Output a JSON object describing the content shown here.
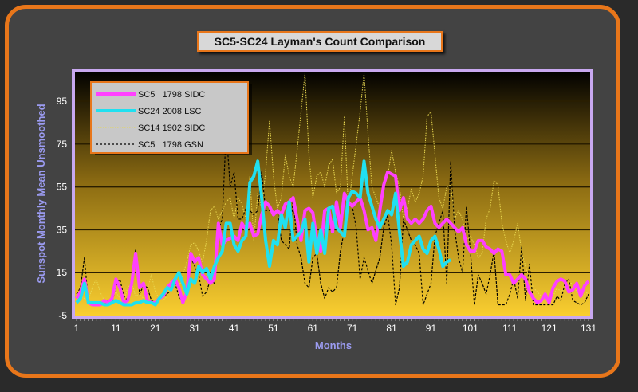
{
  "chart_data": {
    "type": "line",
    "title": "SC5-SC24 Layman's Count Comparison",
    "xlabel": "Months",
    "ylabel": "Sunspot Monthly Mean Unsmoothed",
    "xlim": [
      1,
      131
    ],
    "ylim": [
      -5,
      115
    ],
    "xticks": [
      "1",
      "11",
      "21",
      "31",
      "41",
      "51",
      "61",
      "71",
      "81",
      "91",
      "101",
      "111",
      "121",
      "131"
    ],
    "yticks": [
      "-5",
      "15",
      "35",
      "55",
      "75",
      "95"
    ],
    "grid": true,
    "legend_position": "top-left",
    "series": [
      {
        "name": "SC5   1798 SIDC",
        "color": "#ff40ff",
        "style": "solid-thick",
        "values": [
          3,
          6,
          12,
          1,
          0,
          0,
          0,
          2,
          1,
          3,
          12,
          8,
          1,
          2,
          10,
          24,
          8,
          10,
          2,
          1,
          1,
          3,
          4,
          8,
          10,
          12,
          8,
          1,
          6,
          24,
          20,
          22,
          14,
          12,
          10,
          12,
          38,
          28,
          30,
          31,
          32,
          30,
          38,
          35,
          38,
          32,
          33,
          42,
          48,
          46,
          42,
          44,
          42,
          47,
          48,
          50,
          40,
          30,
          44,
          45,
          43,
          30,
          25,
          44,
          45,
          34,
          48,
          36,
          52,
          48,
          46,
          48,
          50,
          44,
          35,
          36,
          30,
          44,
          56,
          62,
          61,
          60,
          44,
          50,
          40,
          38,
          40,
          38,
          40,
          44,
          46,
          38,
          36,
          38,
          40,
          38,
          36,
          34,
          36,
          28,
          25,
          25,
          30,
          30,
          27,
          26,
          24,
          26,
          25,
          14,
          14,
          10,
          12,
          14,
          12,
          6,
          3,
          1,
          2,
          5,
          1,
          8,
          11,
          12,
          11,
          6,
          7,
          10,
          4,
          9,
          11
        ]
      },
      {
        "name": "SC24 2008 LSC",
        "color": "#20e0f0",
        "style": "solid-thick",
        "values": [
          1,
          3,
          10,
          1,
          1,
          1,
          1,
          0,
          0,
          1,
          2,
          1,
          0,
          0,
          0,
          1,
          1,
          2,
          1,
          1,
          0,
          3,
          5,
          8,
          7,
          12,
          15,
          10,
          5,
          12,
          10,
          18,
          15,
          17,
          12,
          18,
          22,
          25,
          38,
          38,
          28,
          25,
          30,
          32,
          57,
          60,
          67,
          50,
          30,
          18,
          30,
          28,
          42,
          36,
          48,
          30,
          32,
          34,
          40,
          20,
          38,
          24,
          35,
          24,
          45,
          46,
          36,
          34,
          32,
          50,
          53,
          52,
          50,
          67,
          52,
          46,
          40,
          36,
          40,
          44,
          42,
          52,
          34,
          18,
          20,
          28,
          30,
          32,
          26,
          24,
          30,
          32,
          26,
          18,
          20,
          21
        ]
      },
      {
        "name": "SC14 1902 SIDC",
        "color": "#e8d850",
        "style": "dotted",
        "values": [
          6,
          4,
          3,
          2,
          8,
          12,
          6,
          2,
          1,
          4,
          6,
          3,
          2,
          8,
          10,
          4,
          5,
          3,
          7,
          14,
          6,
          3,
          2,
          4,
          12,
          10,
          8,
          14,
          20,
          28,
          29,
          25,
          20,
          30,
          44,
          46,
          40,
          44,
          48,
          50,
          40,
          50,
          47,
          40,
          60,
          30,
          52,
          45,
          62,
          86,
          60,
          45,
          50,
          70,
          60,
          55,
          72,
          90,
          108,
          70,
          50,
          60,
          62,
          55,
          65,
          68,
          52,
          55,
          88,
          45,
          60,
          75,
          90,
          108,
          80,
          55,
          50,
          45,
          55,
          60,
          72,
          62,
          55,
          40,
          45,
          54,
          48,
          52,
          60,
          88,
          90,
          70,
          50,
          45,
          55,
          56,
          40,
          44,
          40,
          30,
          32,
          28,
          22,
          24,
          40,
          45,
          58,
          56,
          38,
          30,
          24,
          30,
          38,
          25,
          18,
          12,
          8,
          6,
          4,
          3,
          2,
          4,
          8,
          6,
          8,
          10,
          10,
          6,
          4,
          5,
          6
        ]
      },
      {
        "name": "SC5   1798 GSN",
        "color": "#000000",
        "style": "dashed",
        "values": [
          5,
          8,
          22,
          1,
          0,
          0,
          0,
          0,
          2,
          1,
          9,
          12,
          4,
          2,
          8,
          26,
          5,
          9,
          8,
          2,
          1,
          3,
          4,
          5,
          7,
          10,
          4,
          1,
          5,
          22,
          18,
          14,
          4,
          6,
          12,
          10,
          35,
          40,
          82,
          55,
          62,
          40,
          40,
          45,
          44,
          42,
          44,
          62,
          44,
          44,
          42,
          44,
          30,
          28,
          26,
          50,
          28,
          22,
          10,
          8,
          22,
          24,
          10,
          3,
          8,
          6,
          8,
          25,
          35,
          48,
          46,
          36,
          12,
          22,
          16,
          10,
          16,
          22,
          36,
          42,
          28,
          0,
          8,
          40,
          35,
          30,
          28,
          24,
          0,
          5,
          10,
          32,
          38,
          44,
          10,
          67,
          35,
          22,
          15,
          46,
          25,
          0,
          14,
          10,
          5,
          14,
          25,
          0,
          0,
          0,
          5,
          12,
          3,
          27,
          2,
          19,
          0,
          0,
          0,
          0,
          0,
          0,
          4,
          2,
          10,
          12,
          2,
          1,
          0,
          1,
          5
        ]
      }
    ]
  }
}
